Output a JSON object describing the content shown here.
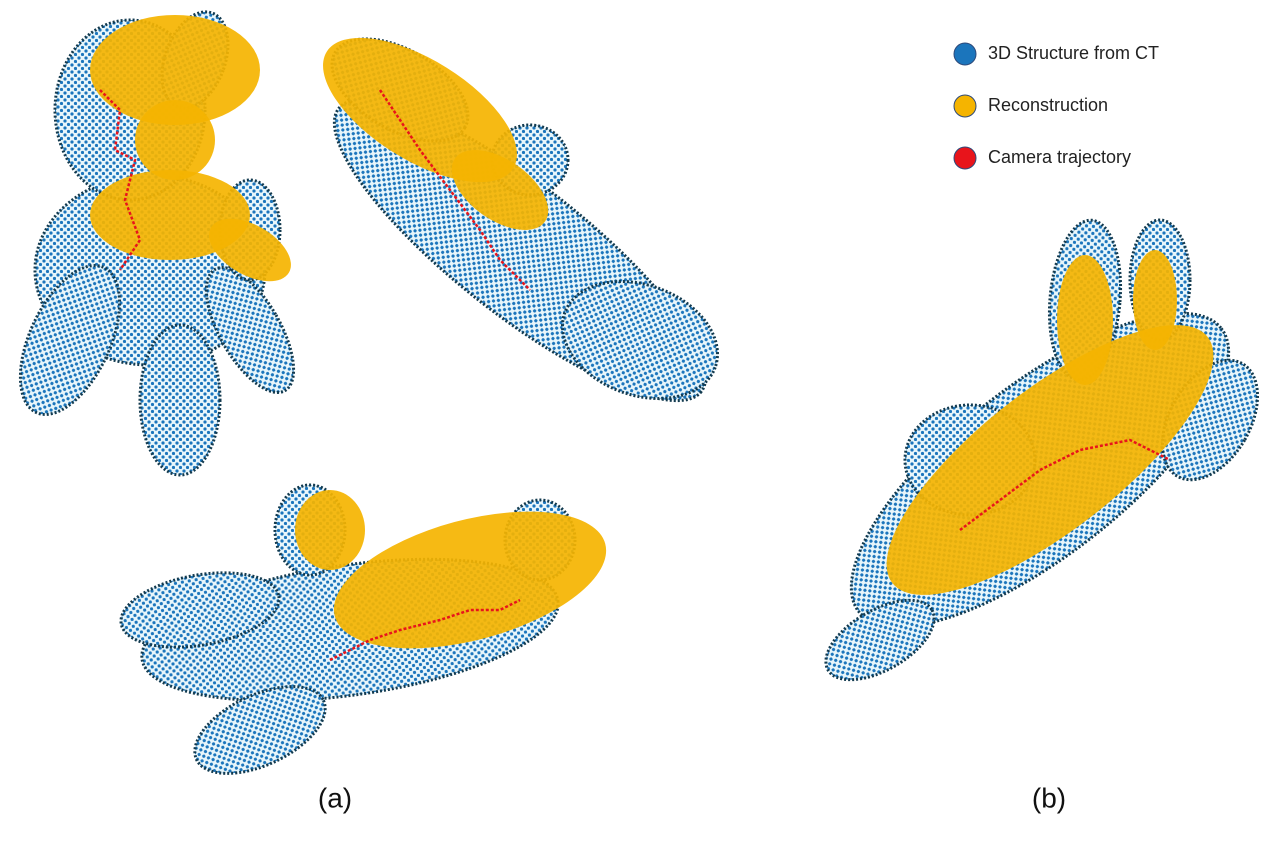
{
  "legend": [
    {
      "label": "3D Structure from CT",
      "color": "#1b75bc"
    },
    {
      "label": "Reconstruction",
      "color": "#f5b400"
    },
    {
      "label": "Camera trajectory",
      "color": "#e8141b"
    }
  ],
  "panels": [
    "(a)",
    "(b)"
  ]
}
